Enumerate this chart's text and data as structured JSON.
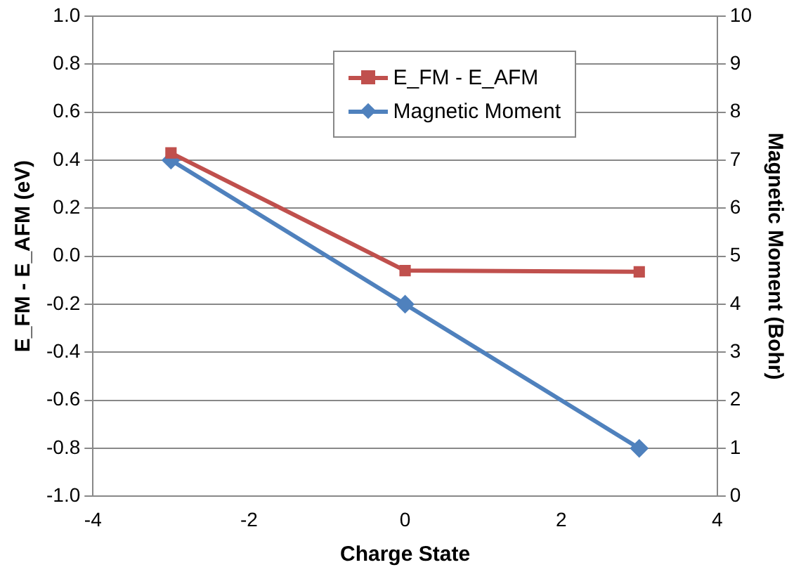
{
  "chart_data": {
    "type": "line",
    "xlabel": "Charge State",
    "ylabel": "E_FM - E_AFM (eV)",
    "y2label": "Magnetic Moment (Bohr)",
    "series": [
      {
        "name": "E_FM - E_AFM",
        "color": "#c0504d",
        "marker": "square",
        "x": [
          -3,
          0,
          3
        ],
        "values": [
          0.43,
          -0.06,
          -0.065
        ]
      },
      {
        "name": "Magnetic Moment",
        "color": "#4f81bd",
        "marker": "diamond",
        "axis": "y2",
        "x": [
          -3,
          0,
          3
        ],
        "values": [
          7,
          4,
          1
        ]
      }
    ],
    "xlim": [
      -4,
      4
    ],
    "xticks": [
      -4,
      -2,
      0,
      2,
      4
    ],
    "ylim": [
      -1,
      1
    ],
    "yticks": [
      {
        "value": -1,
        "label": "-1.0"
      },
      {
        "value": -0.8,
        "label": "-0.8"
      },
      {
        "value": -0.6,
        "label": "-0.6"
      },
      {
        "value": -0.4,
        "label": "-0.4"
      },
      {
        "value": -0.2,
        "label": "-0.2"
      },
      {
        "value": 0,
        "label": "0.0"
      },
      {
        "value": 0.2,
        "label": "0.2"
      },
      {
        "value": 0.4,
        "label": "0.4"
      },
      {
        "value": 0.6,
        "label": "0.6"
      },
      {
        "value": 0.8,
        "label": "0.8"
      },
      {
        "value": 1,
        "label": "1.0"
      }
    ],
    "y2lim": [
      0,
      10
    ],
    "y2ticks": [
      0,
      1,
      2,
      3,
      4,
      5,
      6,
      7,
      8,
      9,
      10
    ],
    "grid": "y",
    "legend": "top",
    "line_style": "solid"
  }
}
